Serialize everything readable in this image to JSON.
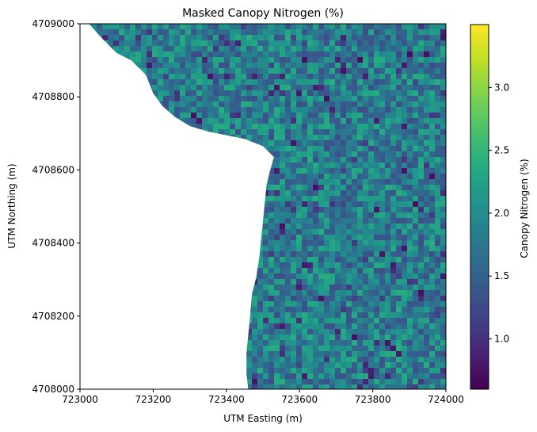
{
  "chart_data": {
    "type": "heatmap",
    "title": "Masked Canopy Nitrogen (%)",
    "xlabel": "UTM Easting (m)",
    "ylabel": "UTM Northing (m)",
    "xlim": [
      723000,
      724000
    ],
    "ylim": [
      4708000,
      4709000
    ],
    "x_ticks": [
      723000,
      723200,
      723400,
      723600,
      723800,
      724000
    ],
    "x_tick_labels": [
      "723000",
      "723200",
      "723400",
      "723600",
      "723800",
      "724000"
    ],
    "y_ticks": [
      4708000,
      4708200,
      4708400,
      4708600,
      4708800,
      4709000
    ],
    "y_tick_labels": [
      "4708000",
      "4708200",
      "4708400",
      "4708600",
      "4708800",
      "4709000"
    ],
    "colorbar": {
      "label": "Canopy Nitrogen (%)",
      "colormap": "viridis",
      "range": [
        0.6,
        3.5
      ],
      "ticks": [
        1.0,
        1.5,
        2.0,
        2.5,
        3.0
      ],
      "tick_labels": [
        "1.0",
        "1.5",
        "2.0",
        "2.5",
        "3.0"
      ]
    },
    "grid": false,
    "typical_value": 1.9,
    "masked_region": "upper-left water area (no data, shown white)",
    "mask_boundary": [
      [
        723025,
        4709000
      ],
      [
        723060,
        4708960
      ],
      [
        723100,
        4708920
      ],
      [
        723140,
        4708900
      ],
      [
        723180,
        4708860
      ],
      [
        723200,
        4708810
      ],
      [
        723225,
        4708775
      ],
      [
        723260,
        4708745
      ],
      [
        723300,
        4708720
      ],
      [
        723350,
        4708705
      ],
      [
        723400,
        4708695
      ],
      [
        723450,
        4708685
      ],
      [
        723500,
        4708665
      ],
      [
        723530,
        4708635
      ],
      [
        723520,
        4708600
      ],
      [
        723510,
        4708560
      ],
      [
        723505,
        4708510
      ],
      [
        723500,
        4708460
      ],
      [
        723495,
        4708410
      ],
      [
        723490,
        4708360
      ],
      [
        723480,
        4708300
      ],
      [
        723470,
        4708260
      ],
      [
        723465,
        4708200
      ],
      [
        723460,
        4708150
      ],
      [
        723455,
        4708100
      ],
      [
        723455,
        4708040
      ],
      [
        723460,
        4708000
      ]
    ]
  }
}
